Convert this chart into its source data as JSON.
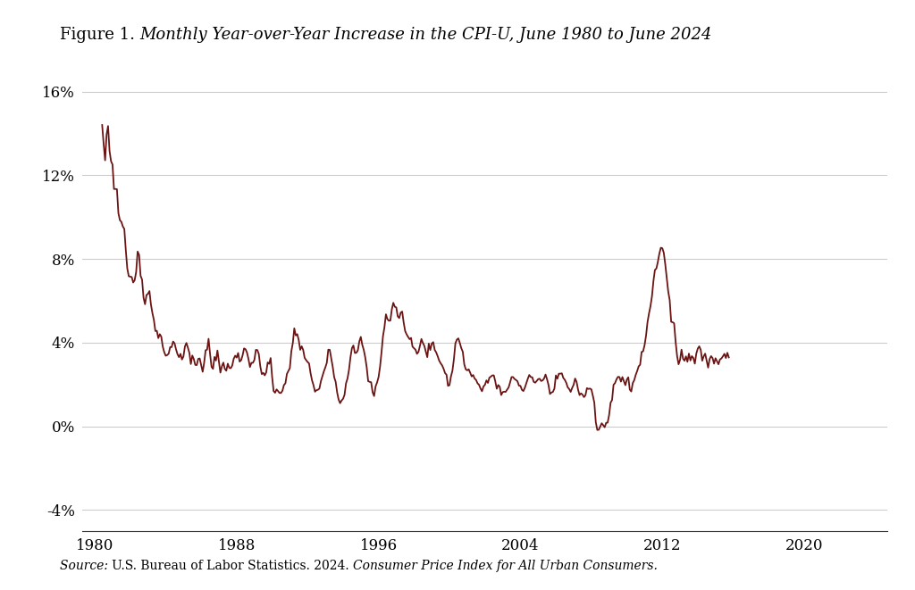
{
  "title_prefix": "Figure 1. ",
  "title_italic": "Monthly Year-over-Year Increase in the CPI-U, June 1980 to June 2024",
  "line_color": "#6b1414",
  "line_width": 1.3,
  "background_color": "#ffffff",
  "ylim": [
    -5,
    17
  ],
  "yticks": [
    -4,
    0,
    4,
    8,
    12,
    16
  ],
  "ytick_labels": [
    "-4%",
    "0%",
    "4%",
    "8%",
    "12%",
    "16%"
  ],
  "xticks": [
    1980,
    1988,
    1996,
    2004,
    2012,
    2020
  ],
  "grid_color": "#cccccc",
  "cpi_yoy": [
    14.41,
    13.51,
    12.72,
    13.95,
    14.36,
    13.17,
    12.68,
    12.52,
    11.35,
    11.35,
    11.34,
    10.19,
    9.86,
    9.78,
    9.56,
    9.44,
    8.43,
    7.55,
    7.18,
    7.16,
    7.14,
    6.88,
    6.99,
    7.38,
    8.36,
    8.2,
    7.2,
    7.02,
    6.15,
    5.84,
    6.28,
    6.34,
    6.47,
    5.83,
    5.42,
    5.09,
    4.56,
    4.57,
    4.22,
    4.41,
    4.29,
    3.82,
    3.55,
    3.38,
    3.41,
    3.48,
    3.79,
    3.79,
    4.06,
    3.97,
    3.68,
    3.45,
    3.31,
    3.47,
    3.2,
    3.34,
    3.82,
    3.99,
    3.77,
    3.52,
    2.98,
    3.39,
    3.22,
    2.94,
    2.93,
    3.23,
    3.25,
    2.93,
    2.61,
    3.04,
    3.64,
    3.67,
    4.19,
    3.47,
    2.85,
    2.75,
    3.32,
    3.15,
    3.63,
    3.11,
    2.57,
    2.87,
    3.05,
    2.75,
    2.66,
    3.0,
    2.8,
    2.78,
    2.91,
    3.23,
    3.38,
    3.29,
    3.51,
    3.1,
    3.16,
    3.39,
    3.73,
    3.69,
    3.53,
    3.22,
    2.84,
    3.04,
    3.04,
    3.18,
    3.66,
    3.65,
    3.46,
    2.87,
    2.5,
    2.56,
    2.44,
    2.58,
    3.06,
    2.99,
    3.27,
    2.37,
    1.69,
    1.61,
    1.77,
    1.69,
    1.6,
    1.6,
    1.71,
    1.98,
    2.06,
    2.51,
    2.65,
    2.79,
    3.59,
    3.98,
    4.69,
    4.35,
    4.41,
    4.13,
    3.66,
    3.83,
    3.66,
    3.28,
    3.17,
    3.08,
    3.01,
    2.55,
    2.2,
    1.97,
    1.66,
    1.73,
    1.75,
    1.81,
    2.16,
    2.39,
    2.63,
    2.82,
    3.04,
    3.67,
    3.66,
    3.25,
    2.85,
    2.35,
    2.13,
    1.62,
    1.28,
    1.11,
    1.24,
    1.32,
    1.51,
    2.06,
    2.29,
    2.7,
    3.3,
    3.74,
    3.87,
    3.51,
    3.52,
    3.64,
    4.06,
    4.28,
    3.9,
    3.66,
    3.3,
    2.82,
    2.16,
    2.13,
    2.11,
    1.63,
    1.45,
    1.91,
    2.1,
    2.35,
    2.84,
    3.53,
    4.31,
    4.74,
    5.36,
    5.13,
    5.05,
    5.06,
    5.6,
    5.91,
    5.72,
    5.69,
    5.26,
    5.18,
    5.44,
    5.49,
    4.97,
    4.56,
    4.4,
    4.28,
    4.17,
    4.23,
    3.81,
    3.74,
    3.67,
    3.47,
    3.56,
    3.85,
    4.18,
    3.99,
    3.85,
    3.57,
    3.31,
    3.96,
    3.65,
    3.96,
    4.03,
    3.66,
    3.54,
    3.36,
    3.15,
    3.02,
    2.92,
    2.76,
    2.55,
    2.47,
    1.94,
    1.97,
    2.39,
    2.66,
    3.22,
    3.97,
    4.15,
    4.21,
    3.99,
    3.74,
    3.57,
    2.97,
    2.73,
    2.68,
    2.73,
    2.57,
    2.39,
    2.46,
    2.29,
    2.22,
    2.06,
    1.99,
    1.81,
    1.68,
    1.91,
    1.99,
    2.2,
    2.08,
    2.33,
    2.38,
    2.44,
    2.44,
    2.15,
    1.8,
    1.98,
    1.9,
    1.5,
    1.64,
    1.66,
    1.65,
    1.76,
    1.86,
    2.1,
    2.36,
    2.36,
    2.27,
    2.22,
    2.16,
    1.95,
    1.94,
    1.75,
    1.69,
    1.85,
    2.07,
    2.28,
    2.46,
    2.36,
    2.35,
    2.13,
    2.09,
    2.17,
    2.26,
    2.28,
    2.17,
    2.2,
    2.29,
    2.48,
    2.26,
    1.98,
    1.55,
    1.62,
    1.65,
    1.81,
    2.44,
    2.28,
    2.52,
    2.52,
    2.54,
    2.32,
    2.23,
    2.09,
    1.87,
    1.79,
    1.65,
    1.84,
    1.99,
    2.29,
    2.13,
    1.76,
    1.5,
    1.58,
    1.52,
    1.4,
    1.49,
    1.83,
    1.79,
    1.81,
    1.77,
    1.47,
    1.14,
    0.2,
    -0.17,
    -0.16,
    0.0,
    0.15,
    0.06,
    -0.04,
    0.17,
    0.18,
    0.54,
    1.13,
    1.26,
    1.99,
    2.07,
    2.25,
    2.37,
    2.36,
    2.14,
    2.36,
    2.17,
    1.97,
    2.24,
    2.35,
    1.76,
    1.67,
    2.07,
    2.21,
    2.46,
    2.65,
    2.87,
    2.95,
    3.56,
    3.59,
    3.88,
    4.34,
    4.99,
    5.4,
    5.75,
    6.22,
    6.95,
    7.48,
    7.55,
    7.87,
    8.26,
    8.54,
    8.52,
    8.3,
    7.75,
    7.11,
    6.45,
    6.04,
    5.0,
    4.98,
    4.93,
    4.05,
    3.37,
    2.97,
    3.18,
    3.67,
    3.24,
    3.14,
    3.35,
    3.09,
    3.48,
    3.15,
    3.36,
    3.27,
    3.0,
    3.48,
    3.72,
    3.83,
    3.66,
    3.14,
    3.35,
    3.48,
    3.15,
    2.81,
    3.22,
    3.36,
    3.27,
    3.0,
    3.26,
    3.12,
    2.97,
    3.2,
    3.25,
    3.35,
    3.47,
    3.27,
    3.52,
    3.3
  ]
}
